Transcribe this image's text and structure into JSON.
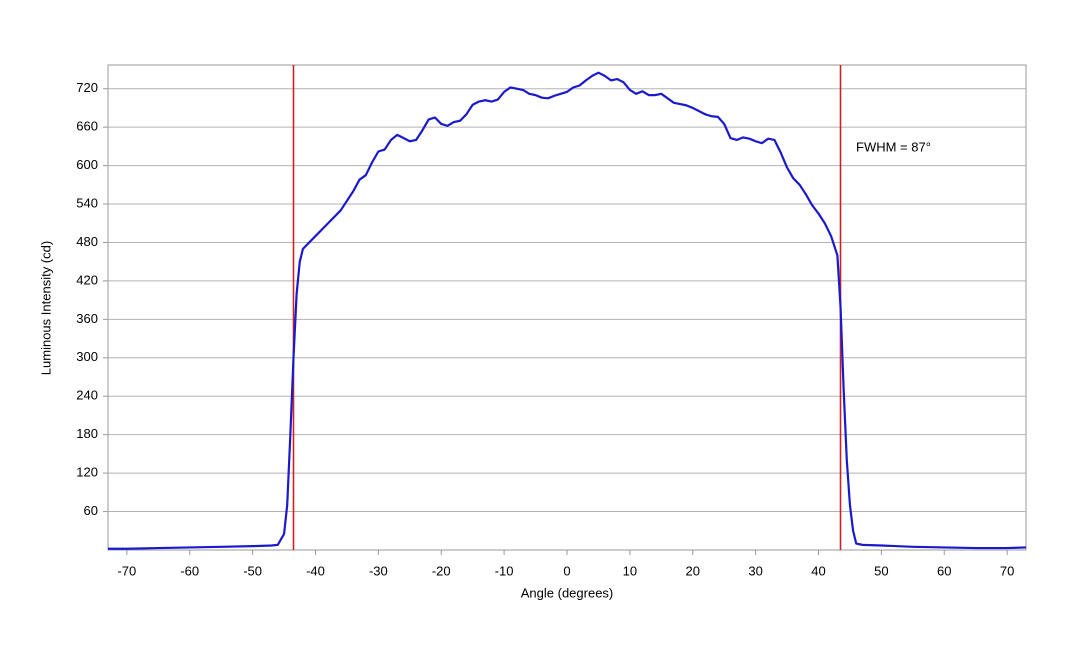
{
  "chart_data": {
    "type": "line",
    "xlabel": "Angle (degrees)",
    "ylabel": "Luminous Intensity (cd)",
    "annotation": "FWHM = 87°",
    "x": [
      -73,
      -70,
      -65,
      -60,
      -55,
      -50,
      -47,
      -46,
      -45,
      -44.5,
      -44,
      -43.5,
      -43,
      -42.5,
      -42,
      -40,
      -38,
      -36,
      -35,
      -34,
      -33,
      -32,
      -31,
      -30,
      -29,
      -28,
      -27,
      -26,
      -25,
      -24,
      -23,
      -22,
      -21,
      -20,
      -19,
      -18,
      -17,
      -16,
      -15,
      -14,
      -13,
      -12,
      -11,
      -10,
      -9,
      -8,
      -7,
      -6,
      -5,
      -4,
      -3,
      -2,
      -1,
      0,
      1,
      2,
      3,
      4,
      5,
      6,
      7,
      8,
      9,
      10,
      11,
      12,
      13,
      14,
      15,
      16,
      17,
      18,
      19,
      20,
      21,
      22,
      23,
      24,
      25,
      26,
      27,
      28,
      29,
      30,
      31,
      32,
      33,
      34,
      35,
      36,
      37,
      38,
      39,
      40,
      41,
      42,
      43,
      43.5,
      44,
      44.5,
      45,
      45.5,
      46,
      47,
      50,
      55,
      60,
      65,
      70,
      73
    ],
    "series": [
      {
        "color": "#1a1acc",
        "values": [
          2,
          2,
          3,
          4,
          5,
          6,
          7,
          8,
          25,
          70,
          180,
          300,
          400,
          450,
          470,
          490,
          510,
          530,
          545,
          560,
          578,
          585,
          605,
          622,
          625,
          640,
          648,
          643,
          638,
          640,
          655,
          672,
          675,
          665,
          662,
          668,
          670,
          680,
          695,
          700,
          702,
          700,
          703,
          715,
          722,
          720,
          718,
          712,
          710,
          706,
          705,
          709,
          712,
          715,
          722,
          725,
          733,
          740,
          745,
          740,
          733,
          735,
          730,
          718,
          712,
          716,
          710,
          710,
          712,
          705,
          698,
          696,
          694,
          690,
          685,
          680,
          677,
          676,
          665,
          643,
          640,
          644,
          642,
          638,
          635,
          642,
          640,
          620,
          597,
          580,
          570,
          555,
          538,
          525,
          510,
          490,
          460,
          380,
          250,
          140,
          70,
          30,
          10,
          8,
          7,
          5,
          4,
          3,
          3,
          4
        ]
      }
    ],
    "vlines": [
      -43.5,
      43.5
    ],
    "vline_color": "#cc2222",
    "xlim": [
      -73,
      73
    ],
    "xticks": [
      -70,
      -60,
      -50,
      -40,
      -30,
      -20,
      -10,
      0,
      10,
      20,
      30,
      40,
      50,
      60,
      70
    ],
    "ylim": [
      0,
      757
    ],
    "yticks": [
      60,
      120,
      180,
      240,
      300,
      360,
      420,
      480,
      540,
      600,
      660,
      720
    ],
    "grid": true
  }
}
